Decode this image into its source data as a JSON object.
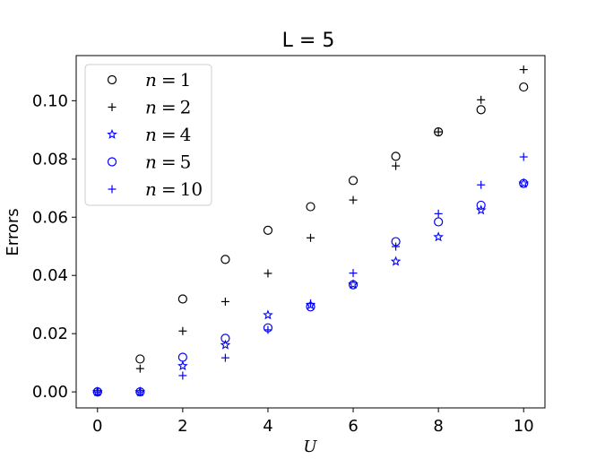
{
  "chart_data": {
    "type": "scatter",
    "title": "L = 5",
    "xlabel": "U",
    "ylabel": "Errors",
    "xlim": [
      -0.5,
      10.5
    ],
    "ylim": [
      -0.0055,
      0.1155
    ],
    "xticks": [
      0,
      2,
      4,
      6,
      8,
      10
    ],
    "xtick_labels": [
      "0",
      "2",
      "4",
      "6",
      "8",
      "10"
    ],
    "yticks": [
      0.0,
      0.02,
      0.04,
      0.06,
      0.08,
      0.1
    ],
    "ytick_labels": [
      "0.00",
      "0.02",
      "0.04",
      "0.06",
      "0.08",
      "0.10"
    ],
    "grid": false,
    "legend_position": "top-left",
    "x": [
      0,
      1,
      2,
      3,
      4,
      5,
      6,
      7,
      8,
      9,
      10
    ],
    "series": [
      {
        "name": "n = 1",
        "marker": "circle",
        "color": "#000000",
        "values": [
          0.0,
          0.0113,
          0.0319,
          0.0455,
          0.0555,
          0.0636,
          0.0726,
          0.0809,
          0.0893,
          0.0969,
          0.1047
        ]
      },
      {
        "name": "n = 2",
        "marker": "plus",
        "color": "#000000",
        "values": [
          0.0,
          0.008,
          0.0209,
          0.031,
          0.0407,
          0.0529,
          0.0659,
          0.0776,
          0.0893,
          0.1003,
          0.1107
        ]
      },
      {
        "name": "n = 4",
        "marker": "star",
        "color": "#0000ff",
        "values": [
          0.0,
          0.0,
          0.0089,
          0.0161,
          0.0264,
          0.0298,
          0.0369,
          0.0448,
          0.0532,
          0.0624,
          0.0716
        ]
      },
      {
        "name": "n = 5",
        "marker": "circle",
        "color": "#0000ff",
        "values": [
          0.0,
          0.0,
          0.0119,
          0.0184,
          0.022,
          0.0292,
          0.0368,
          0.0516,
          0.0584,
          0.0641,
          0.0716
        ]
      },
      {
        "name": "n = 10",
        "marker": "plus",
        "color": "#0000ff",
        "values": [
          0.0,
          0.0,
          0.0056,
          0.0117,
          0.0213,
          0.0304,
          0.0408,
          0.0499,
          0.0612,
          0.0711,
          0.0807
        ]
      }
    ],
    "legend_entries": [
      {
        "var": "n",
        "eq": "=",
        "num": "1"
      },
      {
        "var": "n",
        "eq": "=",
        "num": "2"
      },
      {
        "var": "n",
        "eq": "=",
        "num": "4"
      },
      {
        "var": "n",
        "eq": "=",
        "num": "5"
      },
      {
        "var": "n",
        "eq": "=",
        "num": "10"
      }
    ]
  }
}
